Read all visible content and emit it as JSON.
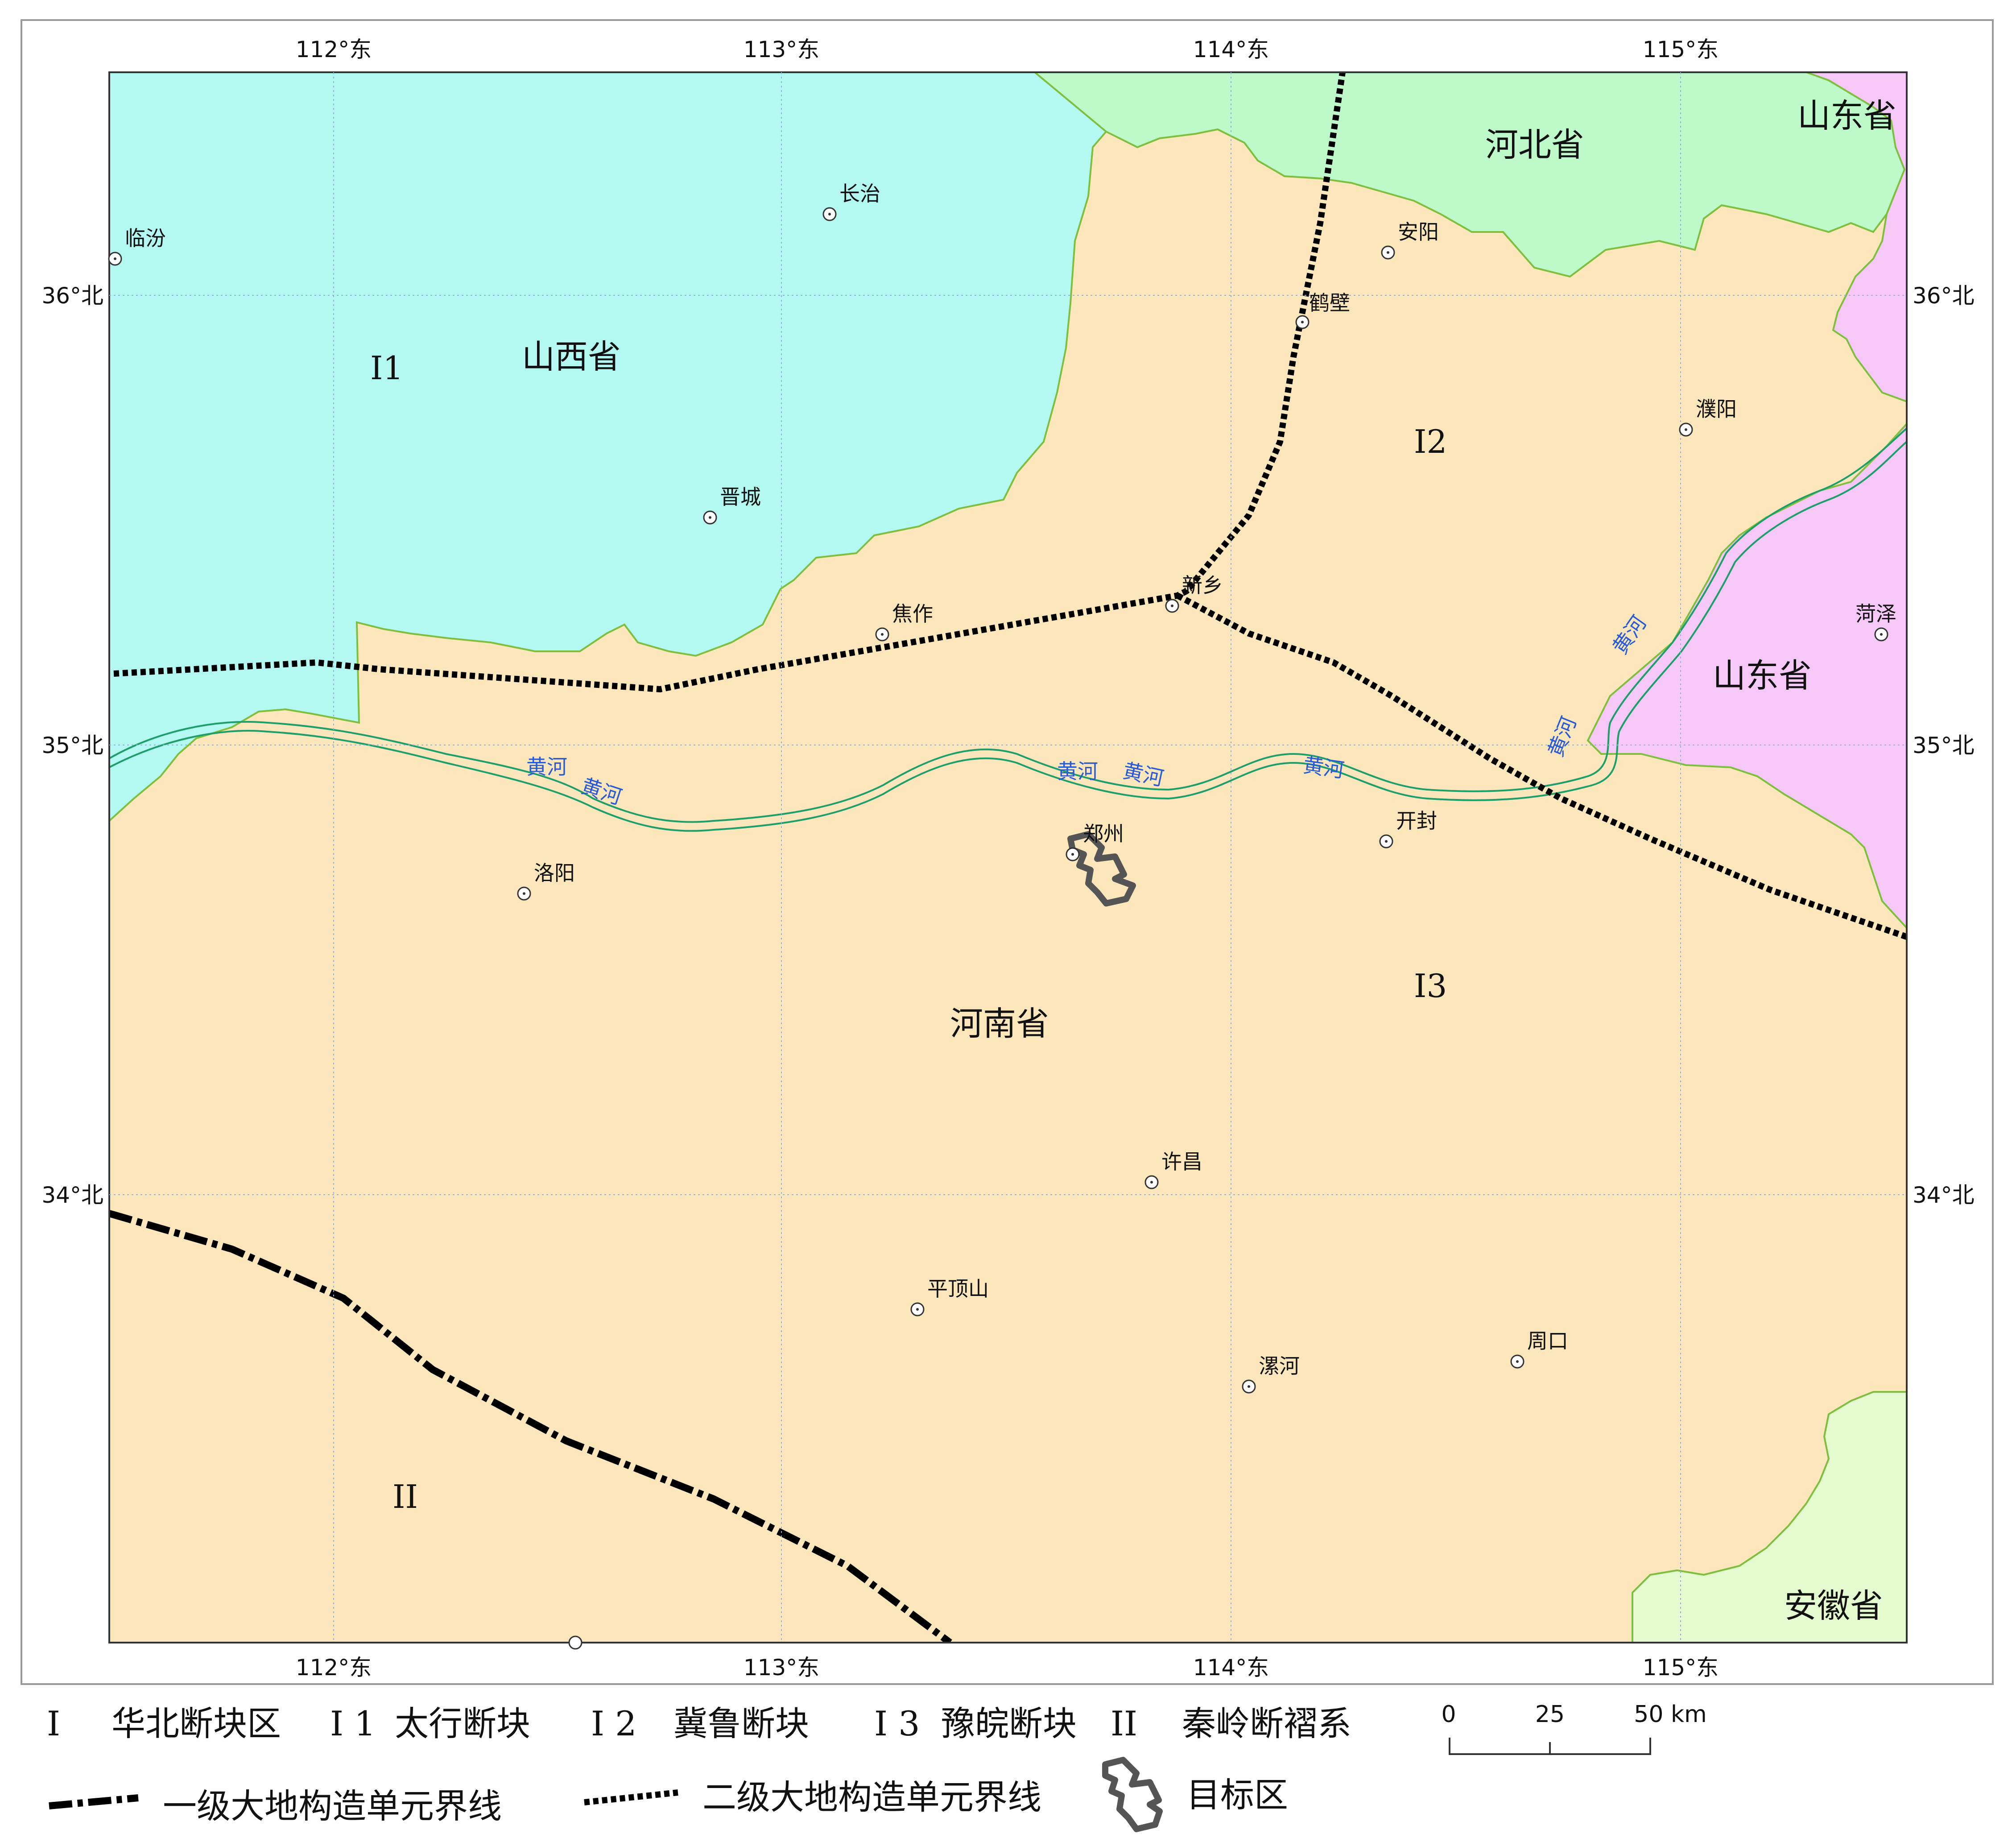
{
  "map": {
    "lon_ticks": [
      "112°东",
      "113°东",
      "114°东",
      "115°东"
    ],
    "lat_ticks": [
      "36°北",
      "35°北",
      "34°北"
    ],
    "provinces": {
      "shanxi": "山西省",
      "hebei": "河北省",
      "shandong_top": "山东省",
      "shandong": "山东省",
      "henan": "河南省",
      "anhui": "安徽省"
    },
    "units": {
      "i1": "I1",
      "i2": "I2",
      "i3": "I3",
      "ii": "II"
    },
    "cities": {
      "linfen": "临汾",
      "changzhi": "长治",
      "jincheng": "晋城",
      "anyang": "安阳",
      "hebi": "鹤壁",
      "puyang": "濮阳",
      "xinxiang": "新乡",
      "jiaozuo": "焦作",
      "heze": "菏泽",
      "zhengzhou": "郑州",
      "kaifeng": "开封",
      "luoyang": "洛阳",
      "xuchang": "许昌",
      "pingdingshan": "平顶山",
      "luohe": "漯河",
      "zhoukou": "周口"
    },
    "river_labels": [
      "黄河",
      "黄河",
      "黄河",
      "黄河",
      "黄河",
      "黄河",
      "黄河"
    ],
    "colors": {
      "shanxi": "#b3f9f1",
      "hebei": "#bdf9c9",
      "shandong": "#f5c8f8",
      "henan": "#fce6bb",
      "anhui": "#e4fbcf",
      "border": "#7fbf3f",
      "river": "#1e9e6a",
      "river_text": "#2a5bd6"
    }
  },
  "legend": {
    "items": [
      {
        "symbol": "I",
        "label": "华北断块区"
      },
      {
        "symbol": "I 1",
        "label": "太行断块"
      },
      {
        "symbol": "I 2",
        "label": "冀鲁断块"
      },
      {
        "symbol": "I 3",
        "label": "豫皖断块"
      },
      {
        "symbol": "II",
        "label": "秦岭断褶系"
      }
    ],
    "line_first": "一级大地构造单元界线",
    "line_second": "二级大地构造单元界线",
    "target": "目标区"
  },
  "scale": {
    "labels": [
      "0",
      "25",
      "50 km"
    ]
  }
}
